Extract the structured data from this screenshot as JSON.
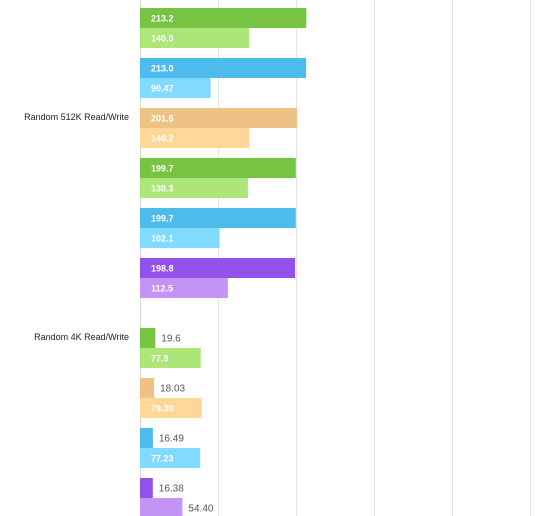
{
  "chart_data": {
    "type": "bar",
    "orientation": "horizontal",
    "xlim": [
      0,
      500
    ],
    "grid": true,
    "colors": {
      "green_read": "#76c441",
      "green_write": "#ace679",
      "blue_read": "#4dbbec",
      "blue_write": "#81daff",
      "orange_read": "#eec284",
      "orange_write": "#ffd899",
      "purple_read": "#9251ea",
      "purple_write": "#c393f6",
      "grid": "#e2e2e2"
    },
    "categories": [
      "",
      "Random 512K Read/Write",
      "Random 4K Read/Write"
    ],
    "groups": [
      {
        "category": "",
        "bars": [
          {
            "value": 213.2,
            "label": "213.2",
            "color": "green_read"
          },
          {
            "value": 140.0,
            "label": "140.0",
            "color": "green_write"
          },
          {
            "value": 213.0,
            "label": "213.0",
            "color": "blue_read"
          },
          {
            "value": 90.47,
            "label": "90.47",
            "color": "blue_write"
          }
        ]
      },
      {
        "category": "Random 512K Read/Write",
        "bars": [
          {
            "value": 201.6,
            "label": "201.6",
            "color": "orange_read"
          },
          {
            "value": 140.2,
            "label": "140.2",
            "color": "orange_write"
          },
          {
            "value": 199.7,
            "label": "199.7",
            "color": "green_read"
          },
          {
            "value": 138.3,
            "label": "138.3",
            "color": "green_write"
          },
          {
            "value": 199.7,
            "label": "199.7",
            "color": "blue_read"
          },
          {
            "value": 102.1,
            "label": "102.1",
            "color": "blue_write"
          },
          {
            "value": 198.8,
            "label": "198.8",
            "color": "purple_read"
          },
          {
            "value": 112.5,
            "label": "112.5",
            "color": "purple_write"
          }
        ]
      },
      {
        "category": "Random 4K Read/Write",
        "bars": [
          {
            "value": 19.6,
            "label": "19.6",
            "color": "green_read"
          },
          {
            "value": 77.9,
            "label": "77.9",
            "color": "green_write"
          },
          {
            "value": 18.03,
            "label": "18.03",
            "color": "orange_read"
          },
          {
            "value": 79.3,
            "label": "79.30",
            "color": "orange_write"
          },
          {
            "value": 16.49,
            "label": "16.49",
            "color": "blue_read"
          },
          {
            "value": 77.23,
            "label": "77.23",
            "color": "blue_write"
          },
          {
            "value": 16.38,
            "label": "16.38",
            "color": "purple_read"
          },
          {
            "value": 54.4,
            "label": "54.40",
            "color": "purple_write"
          }
        ]
      }
    ]
  }
}
